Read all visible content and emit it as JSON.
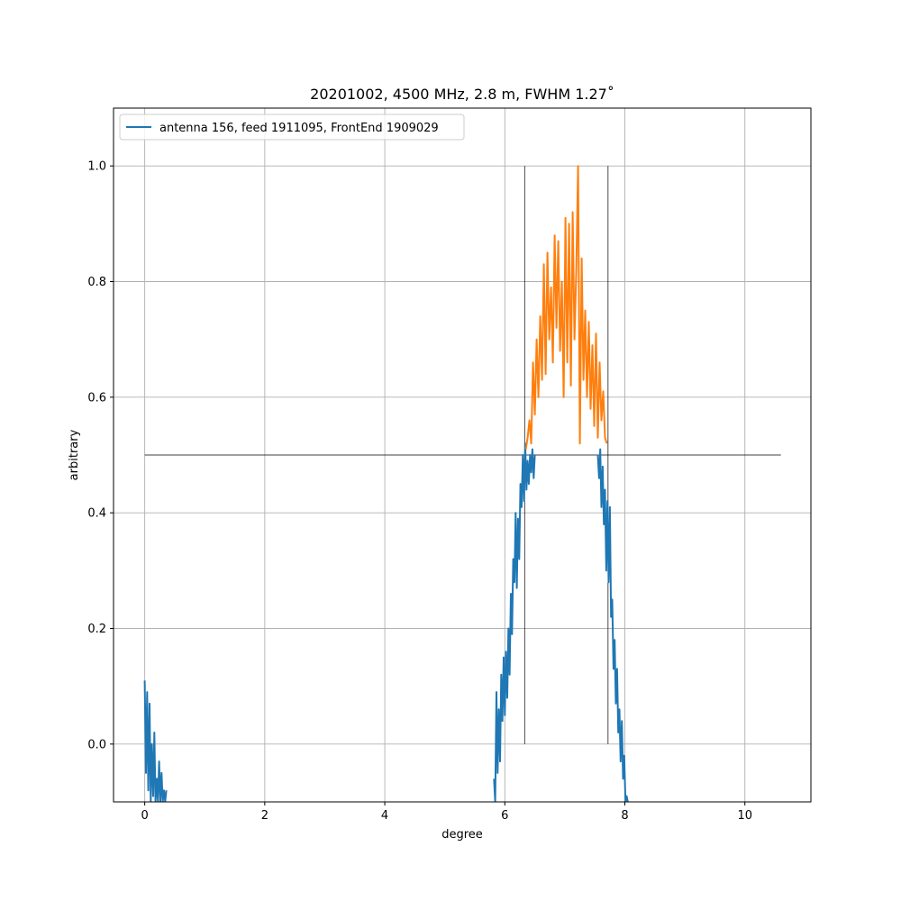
{
  "chart_data": {
    "type": "line",
    "title": "20201002, 4500 MHz, 2.8 m, FWHM 1.27$^\\circ$",
    "title_display": "20201002, 4500 MHz, 2.8 m, FWHM 1.27˚",
    "xlabel": "degree",
    "ylabel": "arbitrary",
    "xlim": [
      -0.52,
      11.1
    ],
    "ylim": [
      -0.1,
      1.1
    ],
    "xticks": [
      0,
      2,
      4,
      6,
      8,
      10
    ],
    "yticks": [
      0.0,
      0.2,
      0.4,
      0.6,
      0.8,
      1.0
    ],
    "xtick_labels": [
      "0",
      "2",
      "4",
      "6",
      "8",
      "10"
    ],
    "ytick_labels": [
      "0.0",
      "0.2",
      "0.4",
      "0.6",
      "0.8",
      "1.0"
    ],
    "grid": true,
    "legend": {
      "position": "top-left"
    },
    "series": [
      {
        "name": "antenna 156, feed 1911095, FrontEnd 1909029",
        "color": "#1f77b4",
        "x": [
          0.0,
          0.02,
          0.04,
          0.06,
          0.08,
          0.1,
          0.12,
          0.14,
          0.16,
          0.18,
          0.2,
          0.22,
          0.24,
          0.26,
          0.28,
          0.3,
          0.32,
          0.34,
          0.36,
          5.82,
          5.84,
          5.86,
          5.88,
          5.9,
          5.92,
          5.94,
          5.96,
          5.98,
          6.0,
          6.02,
          6.04,
          6.06,
          6.08,
          6.1,
          6.12,
          6.14,
          6.16,
          6.18,
          6.2,
          6.22,
          6.24,
          6.26,
          6.28,
          6.3,
          6.32,
          6.34,
          6.36,
          6.38,
          6.4,
          6.42,
          6.44,
          6.46,
          6.48,
          6.5,
          7.55,
          7.57,
          7.59,
          7.61,
          7.63,
          7.65,
          7.67,
          7.69,
          7.71,
          7.73,
          7.75,
          7.77,
          7.79,
          7.81,
          7.83,
          7.85,
          7.87,
          7.89,
          7.91,
          7.93,
          7.95,
          7.97,
          7.99,
          8.01,
          8.03,
          8.05
        ],
        "y": [
          0.11,
          -0.05,
          0.09,
          -0.08,
          0.07,
          -0.1,
          0.0,
          -0.09,
          0.02,
          -0.1,
          -0.06,
          -0.1,
          -0.03,
          -0.1,
          -0.05,
          -0.1,
          -0.08,
          -0.1,
          -0.08,
          -0.06,
          -0.1,
          0.09,
          -0.05,
          0.06,
          -0.03,
          0.12,
          0.04,
          0.15,
          0.05,
          0.16,
          0.08,
          0.2,
          0.12,
          0.26,
          0.19,
          0.32,
          0.28,
          0.4,
          0.27,
          0.39,
          0.32,
          0.45,
          0.41,
          0.5,
          0.42,
          0.52,
          0.44,
          0.49,
          0.45,
          0.5,
          0.47,
          0.51,
          0.46,
          0.5,
          0.5,
          0.46,
          0.51,
          0.41,
          0.48,
          0.38,
          0.44,
          0.3,
          0.42,
          0.28,
          0.41,
          0.22,
          0.25,
          0.13,
          0.18,
          0.07,
          0.13,
          0.02,
          0.06,
          -0.03,
          0.04,
          -0.06,
          -0.02,
          -0.1,
          -0.09,
          -0.1
        ]
      },
      {
        "name": "",
        "color": "#ff7f0e",
        "x": [
          6.35,
          6.38,
          6.41,
          6.44,
          6.47,
          6.5,
          6.53,
          6.56,
          6.59,
          6.62,
          6.65,
          6.68,
          6.71,
          6.74,
          6.77,
          6.8,
          6.83,
          6.86,
          6.89,
          6.92,
          6.95,
          6.98,
          7.01,
          7.04,
          7.07,
          7.1,
          7.13,
          7.16,
          7.19,
          7.22,
          7.25,
          7.28,
          7.31,
          7.34,
          7.37,
          7.4,
          7.43,
          7.46,
          7.49,
          7.52,
          7.55,
          7.58,
          7.61,
          7.64,
          7.67,
          7.7
        ],
        "y": [
          0.51,
          0.53,
          0.56,
          0.52,
          0.66,
          0.57,
          0.7,
          0.6,
          0.74,
          0.63,
          0.83,
          0.64,
          0.85,
          0.7,
          0.79,
          0.66,
          0.88,
          0.72,
          0.87,
          0.68,
          0.8,
          0.6,
          0.91,
          0.66,
          0.9,
          0.62,
          0.92,
          0.7,
          0.82,
          1.0,
          0.52,
          0.84,
          0.63,
          0.75,
          0.6,
          0.73,
          0.58,
          0.69,
          0.55,
          0.71,
          0.53,
          0.66,
          0.56,
          0.61,
          0.53,
          0.52
        ]
      }
    ],
    "reference_lines": {
      "horizontal": {
        "y": 0.5,
        "x": [
          0.0,
          10.6
        ]
      },
      "vertical": [
        {
          "x": 6.33,
          "y": [
            0.0,
            1.0
          ]
        },
        {
          "x": 7.72,
          "y": [
            0.0,
            1.0
          ]
        }
      ]
    }
  }
}
